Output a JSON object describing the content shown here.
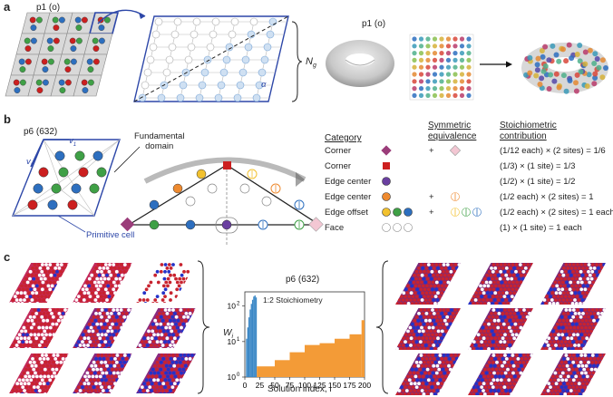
{
  "panels": {
    "a": "a",
    "b": "b",
    "c": "c"
  },
  "panel_a": {
    "group_left": "p1 (o)",
    "group_right": "p1 (o)",
    "ng_label": "N",
    "ng_sub": "g",
    "alpha": "α"
  },
  "panel_b": {
    "group": "p6 (632)",
    "v1": "v",
    "v1_sub": "1",
    "v2": "v",
    "v2_sub": "2",
    "fundamental_line1": "Fundamental",
    "fundamental_line2": "domain",
    "primitive_cell": "Primitive cell",
    "headers": {
      "category": "Category",
      "symmetric_line1": "Symmetric",
      "symmetric_line2": "equivalence",
      "stoich_line1": "Stoichiometric",
      "stoich_line2": "contribution"
    },
    "rows": [
      {
        "category": "Corner",
        "plus": "+",
        "contribution": "(1/12 each) × (2 sites) = 1/6"
      },
      {
        "category": "Corner",
        "plus": "",
        "contribution": "(1/3) × (1 site) = 1/3"
      },
      {
        "category": "Edge center",
        "plus": "",
        "contribution": "(1/2) × (1 site) = 1/2"
      },
      {
        "category": "Edge center",
        "plus": "+",
        "contribution": "(1/2 each) × (2 sites) = 1"
      },
      {
        "category": "Edge offset",
        "plus": "+",
        "contribution": "(1/2 each) × (2 sites) = 1 each"
      },
      {
        "category": "Face",
        "plus": "",
        "contribution": "(1) × (1 site) = 1 each"
      }
    ],
    "colors": {
      "purple": "#9b3d7a",
      "red": "#cc1f1f",
      "violet": "#6a3fa0",
      "orange": "#ee8a2f",
      "yellow": "#f2c12e",
      "green": "#3fa046",
      "blue": "#2d6fbf",
      "pink": "#f3c7d3"
    }
  },
  "panel_c": {
    "chart_title": "p6 (632)",
    "annotation": "1:2 Stoichiometry",
    "ylabel": "W",
    "ylabel_sub": "i",
    "xlabel": "Solution index, i",
    "chart_data": {
      "type": "bar",
      "x_ticks": [
        "0",
        "25",
        "50",
        "75",
        "100",
        "125",
        "150",
        "175",
        "200"
      ],
      "y_ticks": [
        "10",
        "10",
        "10"
      ],
      "y_tick_exp": [
        "0",
        "1",
        "2"
      ],
      "xlim": [
        0,
        200
      ],
      "ylim_log10": [
        0,
        2.4
      ],
      "series": [
        {
          "color": "#3a87c6",
          "bins": [
            [
              0,
              2,
              1
            ],
            [
              2,
              4,
              12
            ],
            [
              4,
              6,
              25
            ],
            [
              6,
              8,
              48
            ],
            [
              8,
              10,
              80
            ],
            [
              10,
              12,
              115
            ],
            [
              12,
              14,
              150
            ],
            [
              14,
              16,
              185
            ],
            [
              16,
              18,
              200
            ],
            [
              18,
              20,
              175
            ]
          ]
        },
        {
          "color": "#f39b37",
          "bins": [
            [
              20,
              50,
              2
            ],
            [
              50,
              75,
              3
            ],
            [
              75,
              100,
              5
            ],
            [
              100,
              125,
              8
            ],
            [
              125,
              150,
              9
            ],
            [
              150,
              175,
              12
            ],
            [
              175,
              195,
              16
            ],
            [
              195,
              200,
              40
            ]
          ]
        }
      ]
    }
  }
}
